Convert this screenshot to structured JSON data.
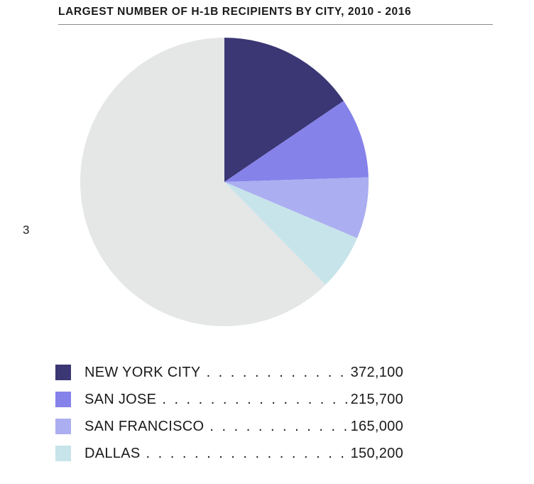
{
  "page": {
    "stray_glyph": "3"
  },
  "chart_data": {
    "type": "pie",
    "title": "LARGEST NUMBER OF H-1B RECIPIENTS BY CITY, 2010 - 2016",
    "slices": [
      {
        "label": "NEW YORK CITY",
        "value": 372100,
        "display": "372,100",
        "color": "#3b3774"
      },
      {
        "label": "SAN JOSE",
        "value": 215700,
        "display": "215,700",
        "color": "#8582ea"
      },
      {
        "label": "SAN FRANCISCO",
        "value": 165000,
        "display": "165,000",
        "color": "#abaef0"
      },
      {
        "label": "DALLAS",
        "value": 150200,
        "display": "150,200",
        "color": "#c7e4ea"
      }
    ],
    "remainder": {
      "value": 1497000,
      "color": "#e5e6e6"
    },
    "legend_position": "bottom"
  }
}
